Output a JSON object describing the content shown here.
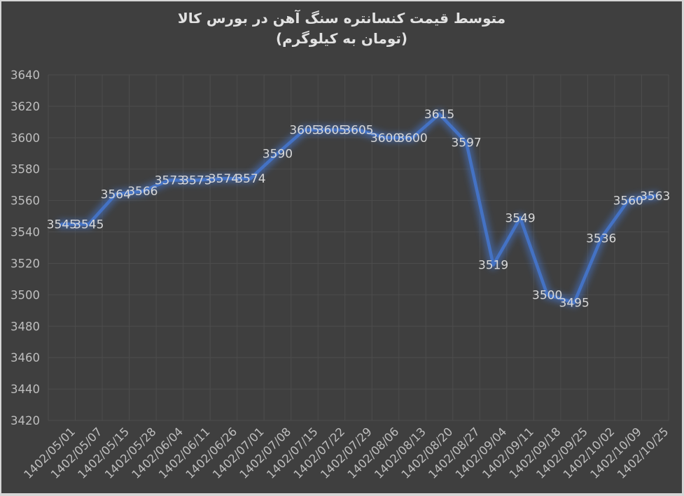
{
  "chart_data": {
    "type": "line",
    "title": "متوسط قیمت کنسانتره سنگ آهن در بورس کالا",
    "subtitle": "(تومان به کیلوگرم)",
    "categories": [
      "1402/05/01",
      "1402/05/07",
      "1402/05/15",
      "1402/05/28",
      "1402/06/04",
      "1402/06/11",
      "1402/06/26",
      "1402/07/01",
      "1402/07/08",
      "1402/07/15",
      "1402/07/22",
      "1402/07/29",
      "1402/08/06",
      "1402/08/13",
      "1402/08/20",
      "1402/08/27",
      "1402/09/04",
      "1402/09/11",
      "1402/09/18",
      "1402/09/25",
      "1402/10/02",
      "1402/10/09",
      "1402/10/25"
    ],
    "values": [
      3545,
      3545,
      3564,
      3566,
      3573,
      3573,
      3574,
      3574,
      3590,
      3605,
      3605,
      3605,
      3600,
      3600,
      3615,
      3597,
      3519,
      3549,
      3500,
      3495,
      3536,
      3560,
      3563
    ],
    "xlabel": "",
    "ylabel": "",
    "ylim": [
      3420,
      3640
    ],
    "ytick_step": 20,
    "yticks": [
      3420,
      3440,
      3460,
      3480,
      3500,
      3520,
      3540,
      3560,
      3580,
      3600,
      3620,
      3640
    ],
    "grid": true,
    "legend": "none",
    "data_label_position": "center",
    "x_label_rotation_deg": 45,
    "colors": {
      "line": "#4472C4",
      "chart_background": "#3F3F3F",
      "frame": "#D6D6D6",
      "gridline": "#4D4D4D",
      "axis_text": "#BEBEBE",
      "data_label": "#D8D8D8",
      "title_text": "#E2E2E2"
    }
  }
}
